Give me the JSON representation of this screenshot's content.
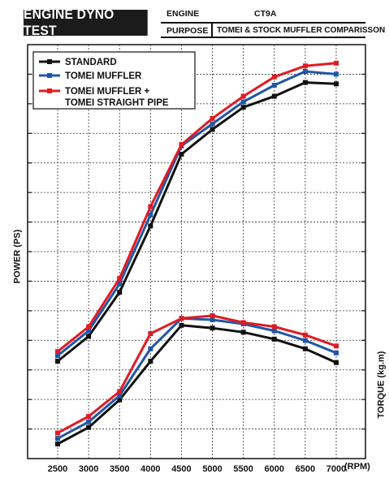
{
  "header": {
    "title": "ENGINE DYNO TEST",
    "engine_label": "ENGINE",
    "engine_value": "CT9A",
    "purpose_label": "PURPOSE",
    "purpose_value": "TOMEI & STOCK MUFFLER COMPARISSON"
  },
  "chart_data": {
    "type": "line",
    "x": [
      2500,
      3000,
      3500,
      4000,
      4500,
      5000,
      5500,
      6000,
      6500,
      7000
    ],
    "xlabel": "(RPM)",
    "y_left_label": "POWER (PS)",
    "y_right_label": "TORQUE (kg.m)",
    "ylim": [
      0,
      15
    ],
    "grid": true,
    "legend_position": "top-left",
    "legend": [
      {
        "name": "STANDARD",
        "color": "#111111"
      },
      {
        "name": "TOMEI MUFFLER",
        "color": "#1f57a8"
      },
      {
        "name": "TOMEI MUFFLER + TOMEI STRAIGHT PIPE",
        "color": "#e01b24"
      }
    ],
    "power_series": [
      {
        "name": "STANDARD",
        "color": "#111111",
        "values": [
          3.0,
          3.9,
          5.5,
          7.9,
          10.5,
          11.4,
          12.2,
          12.6,
          13.1,
          13.05
        ]
      },
      {
        "name": "TOMEI MUFFLER",
        "color": "#1f57a8",
        "values": [
          3.2,
          4.1,
          5.8,
          8.3,
          10.8,
          11.6,
          12.4,
          13.0,
          13.5,
          13.4
        ]
      },
      {
        "name": "TOMEI MUFFLER + TOMEI STRAIGHT PIPE",
        "color": "#e01b24",
        "values": [
          3.35,
          4.25,
          6.0,
          8.6,
          10.85,
          11.8,
          12.6,
          13.3,
          13.7,
          13.8
        ]
      }
    ],
    "torque_series": [
      {
        "name": "STANDARD",
        "color": "#111111",
        "values": [
          0.0,
          0.6,
          1.6,
          3.0,
          4.3,
          4.2,
          4.05,
          3.8,
          3.45,
          2.95
        ]
      },
      {
        "name": "TOMEI MUFFLER",
        "color": "#1f57a8",
        "values": [
          0.2,
          0.8,
          1.75,
          3.45,
          4.55,
          4.5,
          4.35,
          4.1,
          3.75,
          3.3
        ]
      },
      {
        "name": "TOMEI MUFFLER + TOMEI STRAIGHT PIPE",
        "color": "#e01b24",
        "values": [
          0.4,
          1.0,
          1.9,
          4.0,
          4.55,
          4.65,
          4.4,
          4.25,
          3.95,
          3.55
        ]
      }
    ],
    "x_tick_labels": [
      "2500",
      "3000",
      "3500",
      "4000",
      "4500",
      "5000",
      "5500",
      "6000",
      "6500",
      "7000"
    ]
  }
}
